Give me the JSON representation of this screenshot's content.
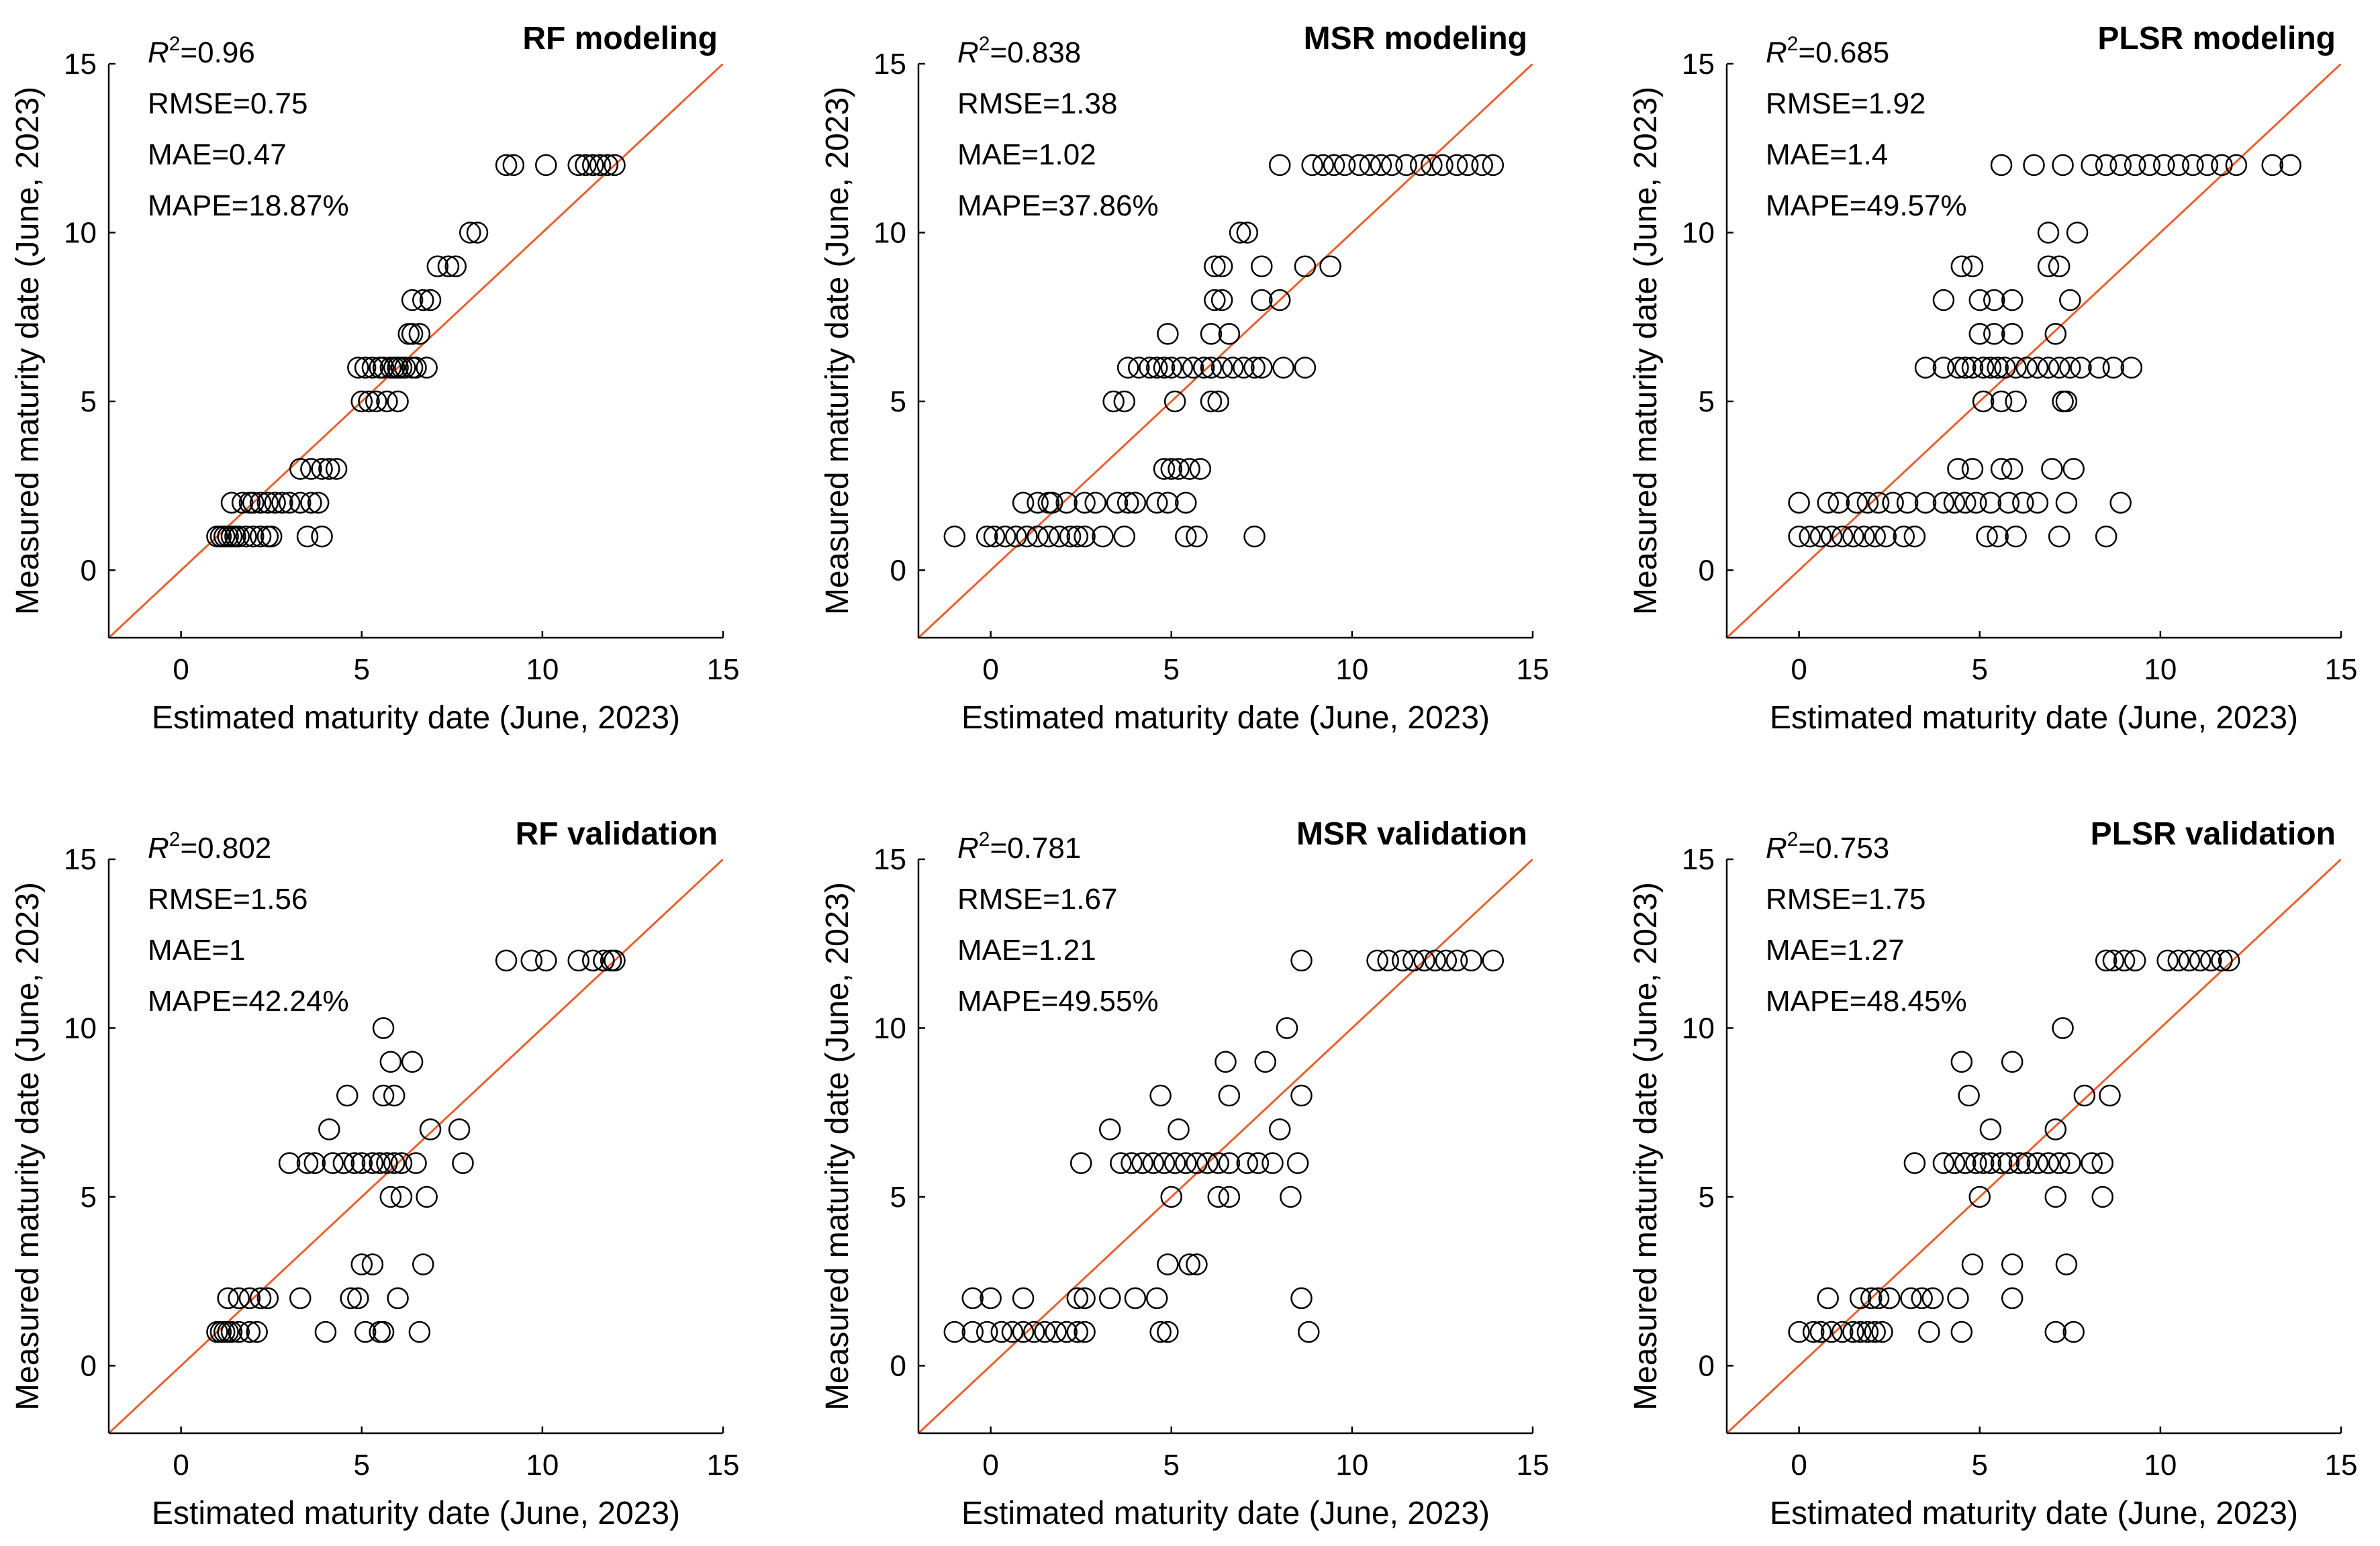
{
  "figure": {
    "accent": "#E8602C",
    "marker_color": "#000000"
  },
  "chart_data": [
    {
      "type": "scatter",
      "title": "RF modeling",
      "xlabel": "Estimated maturity date (June, 2023)",
      "ylabel": "Measured maturity date (June, 2023)",
      "xlim": [
        -2,
        15
      ],
      "ylim": [
        -2,
        15
      ],
      "xticks": [
        0,
        5,
        10,
        15
      ],
      "yticks": [
        0,
        5,
        10,
        15
      ],
      "reference_line": "1:1",
      "stats": {
        "r2_label": "R",
        "r2_exp": "2",
        "r2_value": "=0.96",
        "rmse": "RMSE=0.75",
        "mae": "MAE=0.47",
        "mape": "MAPE=18.87%"
      },
      "series": [
        {
          "y": 1,
          "x": [
            1.0,
            1.1,
            1.2,
            1.3,
            1.4,
            1.5,
            1.6,
            1.8,
            2.0,
            2.2,
            2.4,
            2.5,
            3.5,
            3.9
          ]
        },
        {
          "y": 2,
          "x": [
            1.4,
            1.7,
            1.9,
            2.0,
            2.2,
            2.4,
            2.6,
            2.8,
            3.0,
            3.3,
            3.6,
            3.8
          ]
        },
        {
          "y": 3,
          "x": [
            3.3,
            3.6,
            3.9,
            4.1,
            4.3
          ]
        },
        {
          "y": 5,
          "x": [
            5.0,
            5.2,
            5.4,
            5.7,
            6.0
          ]
        },
        {
          "y": 6,
          "x": [
            4.9,
            5.1,
            5.3,
            5.5,
            5.6,
            5.8,
            5.9,
            6.0,
            6.1,
            6.2,
            6.4,
            6.5,
            6.8
          ]
        },
        {
          "y": 7,
          "x": [
            6.3,
            6.4,
            6.6
          ]
        },
        {
          "y": 8,
          "x": [
            6.4,
            6.7,
            6.9
          ]
        },
        {
          "y": 9,
          "x": [
            7.1,
            7.4,
            7.6
          ]
        },
        {
          "y": 10,
          "x": [
            8.0,
            8.2
          ]
        },
        {
          "y": 12,
          "x": [
            9.0,
            9.2,
            10.1,
            11.0,
            11.2,
            11.4,
            11.6,
            11.8,
            12.0
          ]
        }
      ]
    },
    {
      "type": "scatter",
      "title": "MSR modeling",
      "xlabel": "Estimated maturity date (June, 2023)",
      "ylabel": "Measured maturity date (June, 2023)",
      "xlim": [
        -2,
        15
      ],
      "ylim": [
        -2,
        15
      ],
      "xticks": [
        0,
        5,
        10,
        15
      ],
      "yticks": [
        0,
        5,
        10,
        15
      ],
      "reference_line": "1:1",
      "stats": {
        "r2_label": "R",
        "r2_exp": "2",
        "r2_value": "=0.838",
        "rmse": "RMSE=1.38",
        "mae": "MAE=1.02",
        "mape": "MAPE=37.86%"
      },
      "series": [
        {
          "y": 1,
          "x": [
            -1.0,
            -0.1,
            0.1,
            0.4,
            0.7,
            1.0,
            1.3,
            1.6,
            1.9,
            2.2,
            2.4,
            2.6,
            3.1,
            3.7,
            5.4,
            5.7,
            7.3
          ]
        },
        {
          "y": 2,
          "x": [
            0.9,
            1.3,
            1.6,
            1.7,
            2.1,
            2.6,
            2.9,
            3.5,
            3.8,
            4.0,
            4.6,
            4.9,
            5.4
          ]
        },
        {
          "y": 3,
          "x": [
            4.8,
            5.0,
            5.2,
            5.5,
            5.8
          ]
        },
        {
          "y": 5,
          "x": [
            3.4,
            3.7,
            5.1,
            6.1,
            6.3
          ]
        },
        {
          "y": 6,
          "x": [
            3.8,
            4.1,
            4.4,
            4.6,
            4.8,
            5.0,
            5.3,
            5.6,
            5.9,
            6.1,
            6.4,
            6.7,
            7.0,
            7.3,
            7.5,
            8.1,
            8.7
          ]
        },
        {
          "y": 7,
          "x": [
            4.9,
            6.1,
            6.6
          ]
        },
        {
          "y": 8,
          "x": [
            6.2,
            6.4,
            7.5,
            8.0
          ]
        },
        {
          "y": 9,
          "x": [
            6.2,
            6.4,
            7.5,
            8.7,
            9.4
          ]
        },
        {
          "y": 10,
          "x": [
            6.9,
            7.1
          ]
        },
        {
          "y": 12,
          "x": [
            8.0,
            8.9,
            9.2,
            9.5,
            9.8,
            10.2,
            10.5,
            10.8,
            11.1,
            11.5,
            11.9,
            12.2,
            12.5,
            12.9,
            13.2,
            13.6,
            13.9
          ]
        }
      ]
    },
    {
      "type": "scatter",
      "title": "PLSR modeling",
      "xlabel": "Estimated maturity date (June, 2023)",
      "ylabel": "Measured maturity date (June, 2023)",
      "xlim": [
        -2,
        15
      ],
      "ylim": [
        -2,
        15
      ],
      "xticks": [
        0,
        5,
        10,
        15
      ],
      "yticks": [
        0,
        5,
        10,
        15
      ],
      "reference_line": "1:1",
      "stats": {
        "r2_label": "R",
        "r2_exp": "2",
        "r2_value": "=0.685",
        "rmse": "RMSE=1.92",
        "mae": "MAE=1.4",
        "mape": "MAPE=49.57%"
      },
      "series": [
        {
          "y": 1,
          "x": [
            0.0,
            0.3,
            0.6,
            0.9,
            1.2,
            1.5,
            1.8,
            2.1,
            2.4,
            2.9,
            3.2,
            5.2,
            5.5,
            6.0,
            7.2,
            8.5
          ]
        },
        {
          "y": 2,
          "x": [
            0.0,
            0.8,
            1.1,
            1.6,
            1.9,
            2.2,
            2.6,
            3.0,
            3.5,
            4.0,
            4.3,
            4.6,
            4.9,
            5.3,
            5.8,
            6.2,
            6.6,
            7.4,
            8.9
          ]
        },
        {
          "y": 3,
          "x": [
            4.4,
            4.8,
            5.6,
            5.9,
            7.0,
            7.6
          ]
        },
        {
          "y": 5,
          "x": [
            5.1,
            5.6,
            6.0,
            7.3,
            7.4
          ]
        },
        {
          "y": 6,
          "x": [
            3.5,
            4.0,
            4.4,
            4.6,
            4.8,
            5.1,
            5.3,
            5.5,
            5.7,
            6.0,
            6.3,
            6.6,
            6.9,
            7.2,
            7.5,
            7.8,
            8.3,
            8.7,
            9.2
          ]
        },
        {
          "y": 7,
          "x": [
            5.0,
            5.4,
            5.9,
            7.1
          ]
        },
        {
          "y": 8,
          "x": [
            4.0,
            5.0,
            5.4,
            5.9,
            7.5
          ]
        },
        {
          "y": 9,
          "x": [
            4.5,
            4.8,
            6.9,
            7.2
          ]
        },
        {
          "y": 10,
          "x": [
            6.9,
            7.7
          ]
        },
        {
          "y": 12,
          "x": [
            5.6,
            6.5,
            7.3,
            8.1,
            8.5,
            8.9,
            9.3,
            9.7,
            10.1,
            10.5,
            10.9,
            11.3,
            11.7,
            12.1,
            13.1,
            13.6
          ]
        }
      ]
    },
    {
      "type": "scatter",
      "title": "RF validation",
      "xlabel": "Estimated maturity date (June, 2023)",
      "ylabel": "Measured maturity date (June, 2023)",
      "xlim": [
        -2,
        15
      ],
      "ylim": [
        -2,
        15
      ],
      "xticks": [
        0,
        5,
        10,
        15
      ],
      "yticks": [
        0,
        5,
        10,
        15
      ],
      "reference_line": "1:1",
      "stats": {
        "r2_label": "R",
        "r2_exp": "2",
        "r2_value": "=0.802",
        "rmse": "RMSE=1.56",
        "mae": "MAE=1",
        "mape": "MAPE=42.24%"
      },
      "series": [
        {
          "y": 1,
          "x": [
            1.0,
            1.1,
            1.2,
            1.3,
            1.4,
            1.6,
            1.9,
            2.1,
            4.0,
            5.1,
            5.5,
            5.6,
            6.6
          ]
        },
        {
          "y": 2,
          "x": [
            1.3,
            1.6,
            1.9,
            2.2,
            2.4,
            3.3,
            4.7,
            4.9,
            6.0
          ]
        },
        {
          "y": 3,
          "x": [
            5.0,
            5.3,
            6.7
          ]
        },
        {
          "y": 5,
          "x": [
            5.8,
            6.1,
            6.8
          ]
        },
        {
          "y": 6,
          "x": [
            3.0,
            3.5,
            3.7,
            4.2,
            4.5,
            4.8,
            5.0,
            5.3,
            5.5,
            5.7,
            5.9,
            6.1,
            6.5,
            7.8
          ]
        },
        {
          "y": 7,
          "x": [
            4.1,
            6.9,
            7.7
          ]
        },
        {
          "y": 8,
          "x": [
            4.6,
            5.6,
            5.9
          ]
        },
        {
          "y": 9,
          "x": [
            5.8,
            6.4
          ]
        },
        {
          "y": 10,
          "x": [
            5.6
          ]
        },
        {
          "y": 12,
          "x": [
            9.0,
            9.7,
            10.1,
            11.0,
            11.4,
            11.7,
            11.9,
            12.0
          ]
        }
      ]
    },
    {
      "type": "scatter",
      "title": "MSR validation",
      "xlabel": "Estimated maturity date (June, 2023)",
      "ylabel": "Measured maturity date (June, 2023)",
      "xlim": [
        -2,
        15
      ],
      "ylim": [
        -2,
        15
      ],
      "xticks": [
        0,
        5,
        10,
        15
      ],
      "yticks": [
        0,
        5,
        10,
        15
      ],
      "reference_line": "1:1",
      "stats": {
        "r2_label": "R",
        "r2_exp": "2",
        "r2_value": "=0.781",
        "rmse": "RMSE=1.67",
        "mae": "MAE=1.21",
        "mape": "MAPE=49.55%"
      },
      "series": [
        {
          "y": 1,
          "x": [
            -1.0,
            -0.5,
            -0.1,
            0.3,
            0.6,
            0.9,
            1.2,
            1.5,
            1.8,
            2.1,
            2.4,
            2.6,
            4.7,
            4.9,
            8.8
          ]
        },
        {
          "y": 2,
          "x": [
            -0.5,
            0.0,
            0.9,
            2.4,
            2.6,
            3.3,
            4.0,
            4.6,
            8.6
          ]
        },
        {
          "y": 3,
          "x": [
            4.9,
            5.5,
            5.7
          ]
        },
        {
          "y": 5,
          "x": [
            5.0,
            6.3,
            6.6,
            8.3
          ]
        },
        {
          "y": 6,
          "x": [
            2.5,
            3.6,
            3.9,
            4.2,
            4.5,
            4.8,
            5.1,
            5.4,
            5.7,
            6.0,
            6.3,
            6.6,
            7.1,
            7.4,
            7.8,
            8.5
          ]
        },
        {
          "y": 7,
          "x": [
            3.3,
            5.2,
            8.0
          ]
        },
        {
          "y": 8,
          "x": [
            4.7,
            6.6,
            8.6
          ]
        },
        {
          "y": 9,
          "x": [
            6.5,
            7.6
          ]
        },
        {
          "y": 10,
          "x": [
            8.2
          ]
        },
        {
          "y": 12,
          "x": [
            8.6,
            10.7,
            11.0,
            11.4,
            11.7,
            12.0,
            12.3,
            12.6,
            12.9,
            13.3,
            13.9
          ]
        }
      ]
    },
    {
      "type": "scatter",
      "title": "PLSR validation",
      "xlabel": "Estimated maturity date (June, 2023)",
      "ylabel": "Measured maturity date (June, 2023)",
      "xlim": [
        -2,
        15
      ],
      "ylim": [
        -2,
        15
      ],
      "xticks": [
        0,
        5,
        10,
        15
      ],
      "yticks": [
        0,
        5,
        10,
        15
      ],
      "reference_line": "1:1",
      "stats": {
        "r2_label": "R",
        "r2_exp": "2",
        "r2_value": "=0.753",
        "rmse": "RMSE=1.75",
        "mae": "MAE=1.27",
        "mape": "MAPE=48.45%"
      },
      "series": [
        {
          "y": 1,
          "x": [
            0.0,
            0.4,
            0.6,
            0.9,
            1.2,
            1.5,
            1.7,
            1.9,
            2.1,
            2.3,
            3.6,
            4.5,
            7.1,
            7.6
          ]
        },
        {
          "y": 2,
          "x": [
            0.8,
            1.7,
            2.0,
            2.2,
            2.5,
            3.1,
            3.4,
            3.7,
            4.4,
            5.9
          ]
        },
        {
          "y": 3,
          "x": [
            4.8,
            5.9,
            7.4
          ]
        },
        {
          "y": 5,
          "x": [
            5.0,
            7.1,
            8.4
          ]
        },
        {
          "y": 6,
          "x": [
            3.2,
            4.0,
            4.3,
            4.6,
            4.9,
            5.1,
            5.3,
            5.6,
            5.8,
            6.1,
            6.3,
            6.6,
            6.9,
            7.2,
            7.5,
            8.1,
            8.4
          ]
        },
        {
          "y": 7,
          "x": [
            5.3,
            7.1
          ]
        },
        {
          "y": 8,
          "x": [
            4.7,
            7.9,
            8.6
          ]
        },
        {
          "y": 9,
          "x": [
            4.5,
            5.9
          ]
        },
        {
          "y": 10,
          "x": [
            7.3
          ]
        },
        {
          "y": 12,
          "x": [
            8.5,
            8.7,
            9.0,
            9.3,
            10.2,
            10.5,
            10.8,
            11.1,
            11.4,
            11.7,
            11.9
          ]
        }
      ]
    }
  ]
}
